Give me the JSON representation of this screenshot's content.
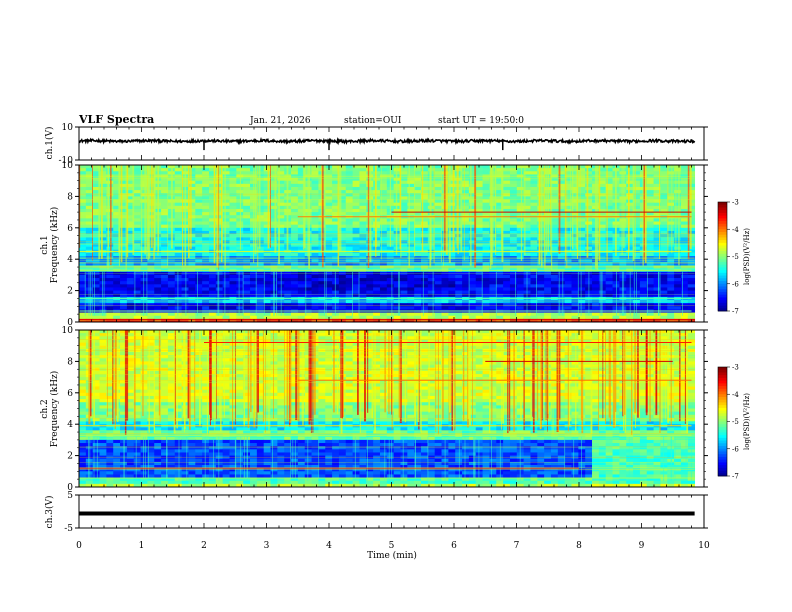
{
  "header": {
    "title": "VLF Spectra",
    "date": "Jan. 21, 2026",
    "station": "station=OUI",
    "start_ut": "start UT =  19:50:0"
  },
  "chart_data": [
    {
      "type": "line",
      "name": "ch1-voltage",
      "ylabel": "ch.1(V)",
      "ylim": [
        -10,
        10
      ],
      "yticks": [
        10,
        -10
      ],
      "trace_mean": 1.5,
      "trace_noise": 0.8,
      "spikes_min": [
        2.0,
        4.0,
        6.78
      ]
    },
    {
      "type": "heatmap",
      "name": "ch1-spectrogram",
      "ylabel": "ch.1\nFrequency (kHz)",
      "ylabel_top": "ch.1",
      "ylabel_bottom": "Frequency (kHz)",
      "ylim": [
        0,
        10
      ],
      "yticks": [
        0,
        2,
        4,
        6,
        8,
        10
      ],
      "colorbar": {
        "label": "log(PSD)(V²/Hz)",
        "range": [
          -7,
          -3
        ],
        "ticks": [
          "-3",
          "-4",
          "-5",
          "-6",
          "-7"
        ]
      },
      "note": "Low-power dark-blue band 0.5–3 kHz; green/cyan 3.5–10 kHz; red at 0–0.3 kHz"
    },
    {
      "type": "heatmap",
      "name": "ch2-spectrogram",
      "ylabel_top": "ch.2",
      "ylabel_bottom": "Frequency (kHz)",
      "ylim": [
        0,
        10
      ],
      "yticks": [
        0,
        2,
        4,
        6,
        8,
        10
      ],
      "colorbar": {
        "label": "log(PSD)(V²/Hz)",
        "range": [
          -7,
          -3
        ],
        "ticks": [
          "-3",
          "-4",
          "-5",
          "-6",
          "-7"
        ]
      },
      "note": "Green/yellow upper band 4–10 kHz with red striations; blue 0.5–3 kHz; green line near 3.3 kHz"
    },
    {
      "type": "line",
      "name": "ch3-voltage",
      "ylabel": "ch.3(V)",
      "ylim": [
        -5,
        5
      ],
      "yticks": [
        5,
        -5
      ],
      "constant_value": -0.6
    }
  ],
  "xaxis": {
    "label": "Time (min)",
    "range": [
      0,
      10
    ],
    "ticks": [
      "0",
      "1",
      "2",
      "3",
      "4",
      "5",
      "6",
      "7",
      "8",
      "9",
      "10"
    ],
    "data_end_min": 9.85
  }
}
